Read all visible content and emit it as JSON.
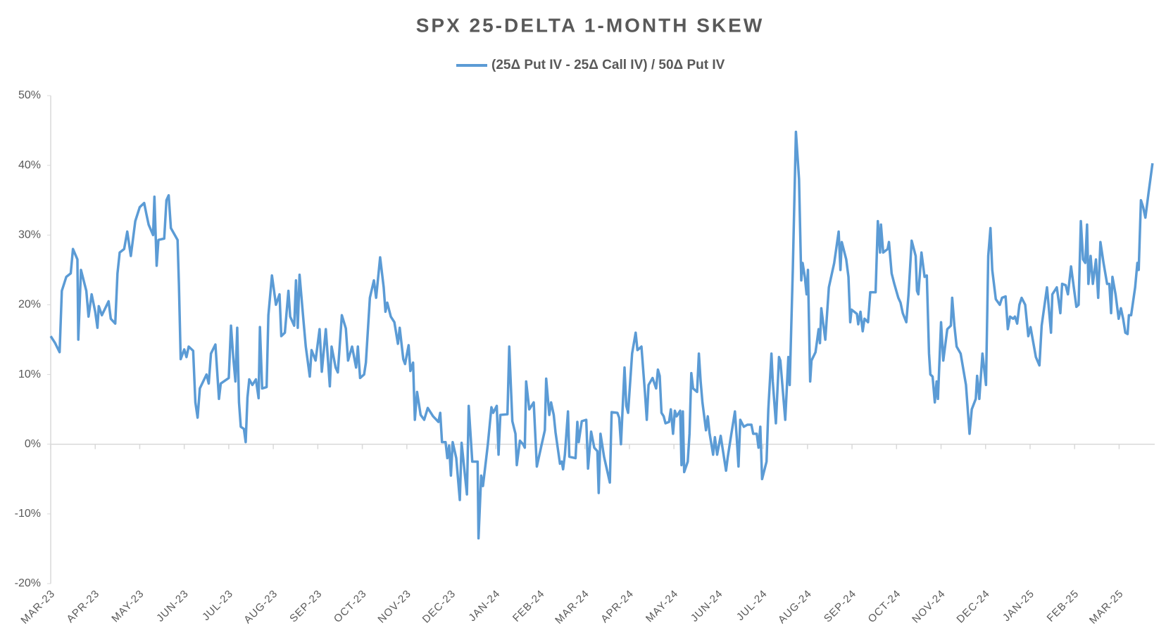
{
  "chart_data": {
    "type": "line",
    "title": "SPX 25-DELTA 1-MONTH SKEW",
    "x": [
      0,
      0.1,
      0.2,
      0.25,
      0.35,
      0.45,
      0.5,
      0.6,
      0.62,
      0.68,
      0.8,
      0.85,
      0.92,
      1.0,
      1.05,
      1.08,
      1.15,
      1.3,
      1.35,
      1.45,
      1.5,
      1.55,
      1.65,
      1.72,
      1.8,
      1.9,
      2.0,
      2.1,
      2.15,
      2.2,
      2.3,
      2.33,
      2.38,
      2.42,
      2.55,
      2.6,
      2.65,
      2.7,
      2.85,
      2.88,
      2.92,
      3.0,
      3.05,
      3.1,
      3.2,
      3.25,
      3.3,
      3.35,
      3.5,
      3.55,
      3.6,
      3.7,
      3.78,
      3.82,
      4.0,
      4.05,
      4.1,
      4.15,
      4.19,
      4.23,
      4.27,
      4.34,
      4.38,
      4.42,
      4.46,
      4.53,
      4.61,
      4.67,
      4.7,
      4.75,
      4.85,
      4.89,
      4.97,
      5.06,
      5.14,
      5.18,
      5.26,
      5.34,
      5.38,
      5.47,
      5.51,
      5.55,
      5.59,
      5.68,
      5.73,
      5.82,
      5.86,
      5.95,
      6.04,
      6.09,
      6.18,
      6.27,
      6.31,
      6.4,
      6.45,
      6.54,
      6.63,
      6.68,
      6.77,
      6.86,
      6.9,
      6.95,
      7.04,
      7.08,
      7.17,
      7.26,
      7.31,
      7.4,
      7.48,
      7.52,
      7.56,
      7.64,
      7.72,
      7.8,
      7.84,
      7.92,
      7.96,
      8.04,
      8.08,
      8.14,
      8.18,
      8.23,
      8.31,
      8.39,
      8.47,
      8.59,
      8.71,
      8.75,
      8.79,
      8.87,
      8.91,
      8.95,
      8.99,
      9.03,
      9.11,
      9.19,
      9.23,
      9.35,
      9.39,
      9.47,
      9.59,
      9.61,
      9.67,
      9.71,
      9.82,
      9.9,
      9.94,
      10.02,
      10.06,
      10.1,
      10.26,
      10.3,
      10.37,
      10.44,
      10.47,
      10.54,
      10.61,
      10.65,
      10.68,
      10.75,
      10.85,
      10.92,
      11.03,
      11.1,
      11.13,
      11.2,
      11.24,
      11.3,
      11.34,
      11.44,
      11.48,
      11.51,
      11.55,
      11.62,
      11.65,
      11.79,
      11.83,
      11.86,
      11.93,
      12.03,
      12.07,
      12.14,
      12.21,
      12.28,
      12.31,
      12.35,
      12.43,
      12.56,
      12.6,
      12.73,
      12.77,
      12.81,
      12.89,
      12.93,
      12.97,
      13.06,
      13.14,
      13.18,
      13.27,
      13.35,
      13.39,
      13.43,
      13.52,
      13.6,
      13.64,
      13.68,
      13.72,
      13.77,
      13.81,
      13.89,
      13.93,
      13.98,
      14.02,
      14.06,
      14.14,
      14.17,
      14.2,
      14.23,
      14.31,
      14.35,
      14.39,
      14.43,
      14.52,
      14.56,
      14.6,
      14.64,
      14.72,
      14.76,
      14.8,
      14.88,
      14.92,
      14.97,
      15.05,
      15.09,
      15.17,
      15.21,
      15.29,
      15.37,
      15.41,
      15.45,
      15.49,
      15.57,
      15.65,
      15.74,
      15.78,
      15.86,
      15.9,
      15.94,
      15.98,
      16.08,
      16.12,
      16.19,
      16.22,
      16.29,
      16.36,
      16.39,
      16.5,
      16.57,
      16.6,
      16.67,
      16.74,
      16.81,
      16.86,
      16.89,
      16.94,
      16.98,
      17.01,
      17.06,
      17.09,
      17.18,
      17.25,
      17.28,
      17.31,
      17.4,
      17.48,
      17.6,
      17.7,
      17.74,
      17.77,
      17.87,
      17.92,
      17.96,
      17.99,
      18.11,
      18.14,
      18.19,
      18.24,
      18.28,
      18.36,
      18.41,
      18.53,
      18.58,
      18.63,
      18.65,
      18.7,
      18.8,
      18.83,
      18.89,
      18.95,
      19.04,
      19.09,
      19.14,
      19.22,
      19.27,
      19.34,
      19.43,
      19.46,
      19.49,
      19.56,
      19.63,
      19.68,
      19.73,
      19.76,
      19.81,
      19.86,
      19.9,
      19.93,
      20.0,
      20.05,
      20.14,
      20.22,
      20.25,
      20.3,
      20.35,
      20.44,
      20.56,
      20.64,
      20.69,
      20.78,
      20.81,
      20.86,
      20.93,
      21.01,
      21.06,
      21.11,
      21.15,
      21.23,
      21.32,
      21.37,
      21.45,
      21.5,
      21.55,
      21.62,
      21.66,
      21.71,
      21.76,
      21.81,
      21.89,
      21.96,
      22.01,
      22.13,
      22.21,
      22.26,
      22.38,
      22.47,
      22.5,
      22.6,
      22.68,
      22.72,
      22.8,
      22.85,
      22.92,
      23.04,
      23.09,
      23.14,
      23.19,
      23.24,
      23.28,
      23.31,
      23.36,
      23.41,
      23.48,
      23.53,
      23.58,
      23.65,
      23.73,
      23.78,
      23.82,
      23.85,
      23.92,
      23.99,
      24.04,
      24.09,
      24.14,
      24.19,
      24.22,
      24.27,
      24.36,
      24.41,
      24.44,
      24.49,
      24.54,
      24.59,
      24.66,
      24.75
    ],
    "series": [
      {
        "name": "(25Δ Put IV - 25Δ Call IV) / 50Δ Put IV",
        "color": "#5b9bd5",
        "values": [
          15.5,
          14.5,
          13.2,
          22,
          24,
          24.5,
          28,
          26.5,
          15,
          25,
          22,
          18.3,
          21.5,
          19,
          16.7,
          19.8,
          18.5,
          20.5,
          18,
          17.3,
          24.5,
          27.5,
          28,
          30.5,
          27,
          32,
          34,
          34.6,
          33,
          31.5,
          30,
          35.5,
          25.6,
          29.3,
          29.5,
          35,
          35.7,
          31,
          29.3,
          23,
          12.2,
          13.6,
          12.5,
          14,
          13.4,
          6,
          3.8,
          8,
          10,
          8.7,
          13,
          14.3,
          6.5,
          8.7,
          9.5,
          17,
          12.5,
          9,
          16.7,
          6,
          2.5,
          2.2,
          0.3,
          6.7,
          9.3,
          8.5,
          9.3,
          6.6,
          16.8,
          8,
          8.2,
          18.5,
          24.2,
          20,
          21.5,
          15.5,
          16,
          22,
          18.3,
          17,
          23.5,
          16.7,
          24.3,
          17.6,
          14,
          9.7,
          13.5,
          12,
          16.5,
          10.4,
          16.5,
          8.3,
          14,
          11,
          10.3,
          18.5,
          16.6,
          12,
          14,
          11,
          14,
          9.5,
          10,
          11.7,
          21,
          23.5,
          21,
          26.8,
          22.5,
          19,
          20.3,
          18.3,
          17.5,
          14.4,
          16.7,
          12.2,
          11.5,
          14.2,
          10.5,
          11.7,
          3.5,
          7.5,
          4.2,
          3.5,
          5.2,
          4,
          3.2,
          4.5,
          0.3,
          0.3,
          -2,
          -0.2,
          -4.5,
          0.3,
          -2,
          -8,
          0.2,
          -7.2,
          5.5,
          -2.5,
          -2.5,
          -13.5,
          -4.5,
          -6,
          0,
          5.3,
          4.5,
          5.5,
          -1.5,
          4.2,
          4.3,
          14,
          3.3,
          1.5,
          -3,
          0.5,
          0,
          -0.5,
          9,
          5,
          6,
          -3.2,
          0,
          2,
          9.4,
          4.2,
          6,
          4.2,
          1.7,
          -2.8,
          -2.5,
          -3.6,
          -1.5,
          4.7,
          -1.8,
          -2,
          3.2,
          0.3,
          3.3,
          3.5,
          -3.5,
          1.8,
          -0.5,
          -1,
          -7,
          1.5,
          -1.8,
          -5.5,
          4.6,
          4.5,
          3.8,
          0,
          11,
          5.5,
          4.5,
          13,
          16,
          13.5,
          14,
          7.3,
          3.5,
          8.5,
          9.5,
          8,
          10.7,
          9.8,
          4.5,
          4,
          3,
          3.2,
          5,
          1.5,
          4.8,
          4,
          4.8,
          -3,
          4.7,
          -4,
          -2.5,
          1.5,
          10.2,
          8,
          7.5,
          13,
          9,
          6,
          2,
          4,
          1.6,
          -1.5,
          1,
          -1.5,
          1.2,
          -0.5,
          -3.8,
          -1.8,
          1.5,
          4.7,
          1,
          -3.2,
          3.5,
          2.5,
          2.8,
          2.8,
          1.5,
          1.5,
          -0.5,
          2.5,
          -5,
          -2.5,
          5,
          13,
          9,
          3,
          12.5,
          12,
          3.5,
          12.5,
          8.5,
          25,
          44.8,
          38,
          23.5,
          26,
          24,
          21.5,
          25,
          9,
          12,
          13.2,
          16.5,
          14.5,
          19.5,
          15,
          22.5,
          26,
          30.5,
          25,
          29,
          26.5,
          24,
          17.5,
          19.3,
          18.7,
          17.2,
          19,
          16.2,
          18,
          17.5,
          21.8,
          21.8,
          32,
          27.5,
          31.5,
          27.5,
          28,
          29,
          24.5,
          23,
          21,
          20.3,
          18.8,
          17.5,
          21.5,
          29.2,
          27,
          22,
          21.5,
          27.5,
          24,
          24.2,
          13,
          10,
          9.7,
          6,
          9,
          6.5,
          17.5,
          12,
          16.5,
          17,
          21,
          17,
          14,
          13,
          8.5,
          1.5,
          5,
          6.5,
          9.8,
          6.5,
          13,
          8.5,
          27,
          31,
          25,
          20.8,
          20,
          21,
          21.2,
          16.5,
          18.3,
          18,
          18.3,
          17.3,
          20,
          21,
          20,
          15.5,
          16.8,
          12.5,
          11.3,
          17,
          22.5,
          16,
          21.5,
          22.5,
          18.8,
          23,
          22.8,
          21.5,
          25.5,
          19.7,
          20,
          32,
          26.5,
          26,
          31.5,
          23,
          27,
          23,
          26.5,
          21,
          29,
          26,
          23,
          23,
          18.8,
          24,
          21.5,
          18,
          19.5,
          18,
          16,
          15.8,
          18.5,
          18.5,
          22.5,
          26,
          25,
          35,
          34,
          32.5,
          36,
          40.3
        ]
      }
    ],
    "xlim": [
      0,
      24.8
    ],
    "xticks": [
      {
        "value": 0,
        "label": "MAR-23"
      },
      {
        "value": 1,
        "label": "APR-23"
      },
      {
        "value": 2,
        "label": "MAY-23"
      },
      {
        "value": 3,
        "label": "JUN-23"
      },
      {
        "value": 4,
        "label": "JUL-23"
      },
      {
        "value": 5,
        "label": "AUG-23"
      },
      {
        "value": 6,
        "label": "SEP-23"
      },
      {
        "value": 7,
        "label": "OCT-23"
      },
      {
        "value": 8,
        "label": "NOV-23"
      },
      {
        "value": 9,
        "label": "DEC-23"
      },
      {
        "value": 10,
        "label": "JAN-24"
      },
      {
        "value": 11,
        "label": "FEB-24"
      },
      {
        "value": 12,
        "label": "MAR-24"
      },
      {
        "value": 13,
        "label": "APR-24"
      },
      {
        "value": 14,
        "label": "MAY-24"
      },
      {
        "value": 15,
        "label": "JUN-24"
      },
      {
        "value": 16,
        "label": "JUL-24"
      },
      {
        "value": 17,
        "label": "AUG-24"
      },
      {
        "value": 18,
        "label": "SEP-24"
      },
      {
        "value": 19,
        "label": "OCT-24"
      },
      {
        "value": 20,
        "label": "NOV-24"
      },
      {
        "value": 21,
        "label": "DEC-24"
      },
      {
        "value": 22,
        "label": "JAN-25"
      },
      {
        "value": 23,
        "label": "FEB-25"
      },
      {
        "value": 24,
        "label": "MAR-25"
      }
    ],
    "ylim": [
      -20,
      50
    ],
    "yticks": [
      {
        "value": -20,
        "label": "-20%"
      },
      {
        "value": -10,
        "label": "-10%"
      },
      {
        "value": 0,
        "label": "0%"
      },
      {
        "value": 10,
        "label": "10%"
      },
      {
        "value": 20,
        "label": "20%"
      },
      {
        "value": 30,
        "label": "30%"
      },
      {
        "value": 40,
        "label": "40%"
      },
      {
        "value": 50,
        "label": "50%"
      }
    ],
    "grid": false,
    "legend": "top"
  }
}
